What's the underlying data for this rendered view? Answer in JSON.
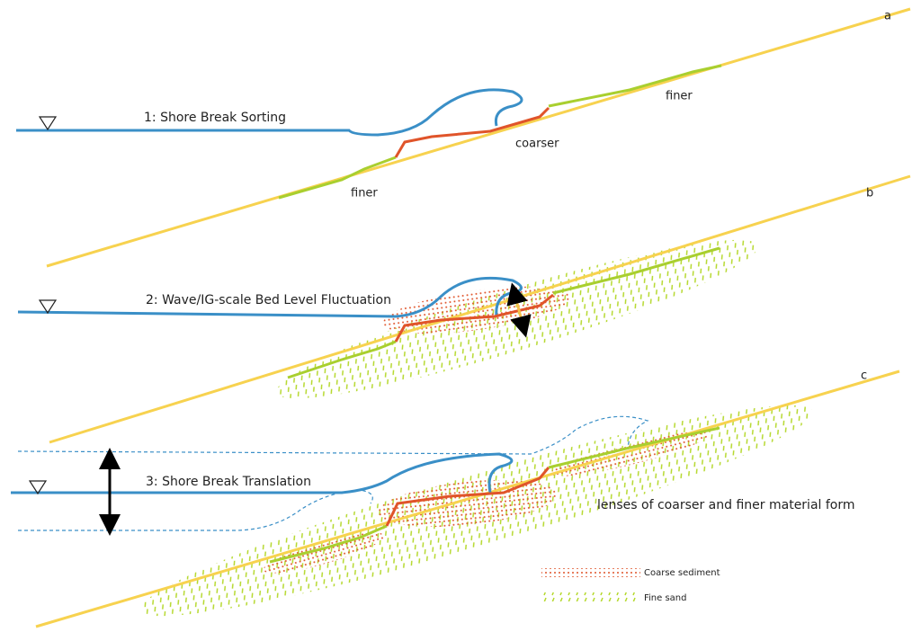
{
  "panels": [
    {
      "letter": "a",
      "title": "1: Shore Break Sorting",
      "annotations": [
        "finer",
        "coarser",
        "finer"
      ]
    },
    {
      "letter": "b",
      "title": "2: Wave/IG-scale Bed Level Fluctuation"
    },
    {
      "letter": "c",
      "title": "3: Shore Break Translation",
      "note": "lenses of coarser and finer material form"
    }
  ],
  "legend": [
    "Coarse sediment",
    "Fine sand"
  ]
}
